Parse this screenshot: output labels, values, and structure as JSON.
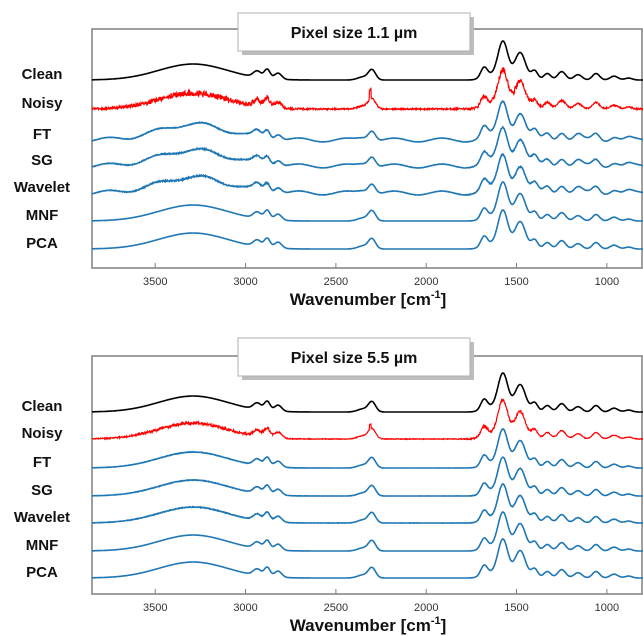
{
  "chart_data": [
    {
      "type": "line",
      "title": "Pixel size 1.1 µm",
      "xlabel": "Wavenumber [cm",
      "xlabel_sup": "-1",
      "xlabel_end": "]",
      "xlim": [
        3850,
        800
      ],
      "x_reversed": true,
      "x_ticks": [
        3500,
        3000,
        2500,
        2000,
        1500,
        1000
      ],
      "y_ticks_shown": false,
      "grid": false,
      "series": [
        {
          "name": "Clean",
          "color": "#000000",
          "noise": 0,
          "features": "sharp"
        },
        {
          "name": "Noisy",
          "color": "#ff0000",
          "noise": 1.0,
          "features": "sharp"
        },
        {
          "name": "FT",
          "color": "#1f77b4",
          "noise": 0.12,
          "features": "wavy"
        },
        {
          "name": "SG",
          "color": "#1f77b4",
          "noise": 0.18,
          "features": "wavy"
        },
        {
          "name": "Wavelet",
          "color": "#1f77b4",
          "noise": 0.2,
          "features": "wavy"
        },
        {
          "name": "MNF",
          "color": "#1f77b4",
          "noise": 0,
          "features": "sharp"
        },
        {
          "name": "PCA",
          "color": "#1f77b4",
          "noise": 0,
          "features": "sharp"
        }
      ]
    },
    {
      "type": "line",
      "title": "Pixel size 5.5 µm",
      "xlabel": "Wavenumber [cm",
      "xlabel_sup": "-1",
      "xlabel_end": "]",
      "xlim": [
        3850,
        800
      ],
      "x_reversed": true,
      "x_ticks": [
        3500,
        3000,
        2500,
        2000,
        1500,
        1000
      ],
      "y_ticks_shown": false,
      "grid": false,
      "series": [
        {
          "name": "Clean",
          "color": "#000000",
          "noise": 0,
          "features": "sharp"
        },
        {
          "name": "Noisy",
          "color": "#ff0000",
          "noise": 0.5,
          "features": "sharp"
        },
        {
          "name": "FT",
          "color": "#1f77b4",
          "noise": 0.08,
          "features": "sharp"
        },
        {
          "name": "SG",
          "color": "#1f77b4",
          "noise": 0.1,
          "features": "sharp"
        },
        {
          "name": "Wavelet",
          "color": "#1f77b4",
          "noise": 0.12,
          "features": "sharp"
        },
        {
          "name": "MNF",
          "color": "#1f77b4",
          "noise": 0,
          "features": "sharp"
        },
        {
          "name": "PCA",
          "color": "#1f77b4",
          "noise": 0,
          "features": "sharp"
        }
      ]
    }
  ]
}
